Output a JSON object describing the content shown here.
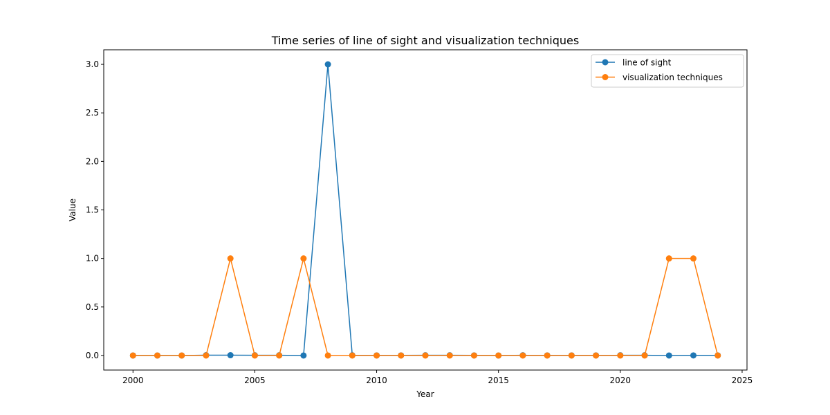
{
  "chart_data": {
    "type": "line",
    "title": "Time series of line of sight and visualization techniques",
    "xlabel": "Year",
    "ylabel": "Value",
    "xlim": [
      1998.8,
      2025.2
    ],
    "ylim": [
      -0.15,
      3.15
    ],
    "xticks": [
      2000,
      2005,
      2010,
      2015,
      2020,
      2025
    ],
    "yticks": [
      0.0,
      0.5,
      1.0,
      1.5,
      2.0,
      2.5,
      3.0
    ],
    "xtick_labels": [
      "2000",
      "2005",
      "2010",
      "2015",
      "2020",
      "2025"
    ],
    "ytick_labels": [
      "0.0",
      "0.5",
      "1.0",
      "1.5",
      "2.0",
      "2.5",
      "3.0"
    ],
    "grid": false,
    "legend_position": "top-right",
    "x": [
      2000,
      2001,
      2002,
      2003,
      2004,
      2005,
      2006,
      2007,
      2008,
      2009,
      2010,
      2011,
      2012,
      2013,
      2014,
      2015,
      2016,
      2017,
      2018,
      2019,
      2020,
      2021,
      2022,
      2023,
      2024
    ],
    "series": [
      {
        "name": "line of sight",
        "color": "#1f77b4",
        "values": [
          0,
          0,
          0,
          0.003,
          0.003,
          0.002,
          0.002,
          0,
          3,
          0.002,
          0.001,
          0.001,
          0.002,
          0.002,
          0.001,
          0,
          0.002,
          0.001,
          0.001,
          0.001,
          0.002,
          0.002,
          0,
          0.001,
          0.001
        ]
      },
      {
        "name": "visualization techniques",
        "color": "#ff7f0e",
        "values": [
          0,
          0,
          0,
          0,
          1,
          0,
          0,
          1,
          0,
          0,
          0,
          0,
          0,
          0,
          0,
          0,
          0,
          0,
          0,
          0,
          0,
          0,
          1,
          1,
          0
        ]
      }
    ]
  }
}
